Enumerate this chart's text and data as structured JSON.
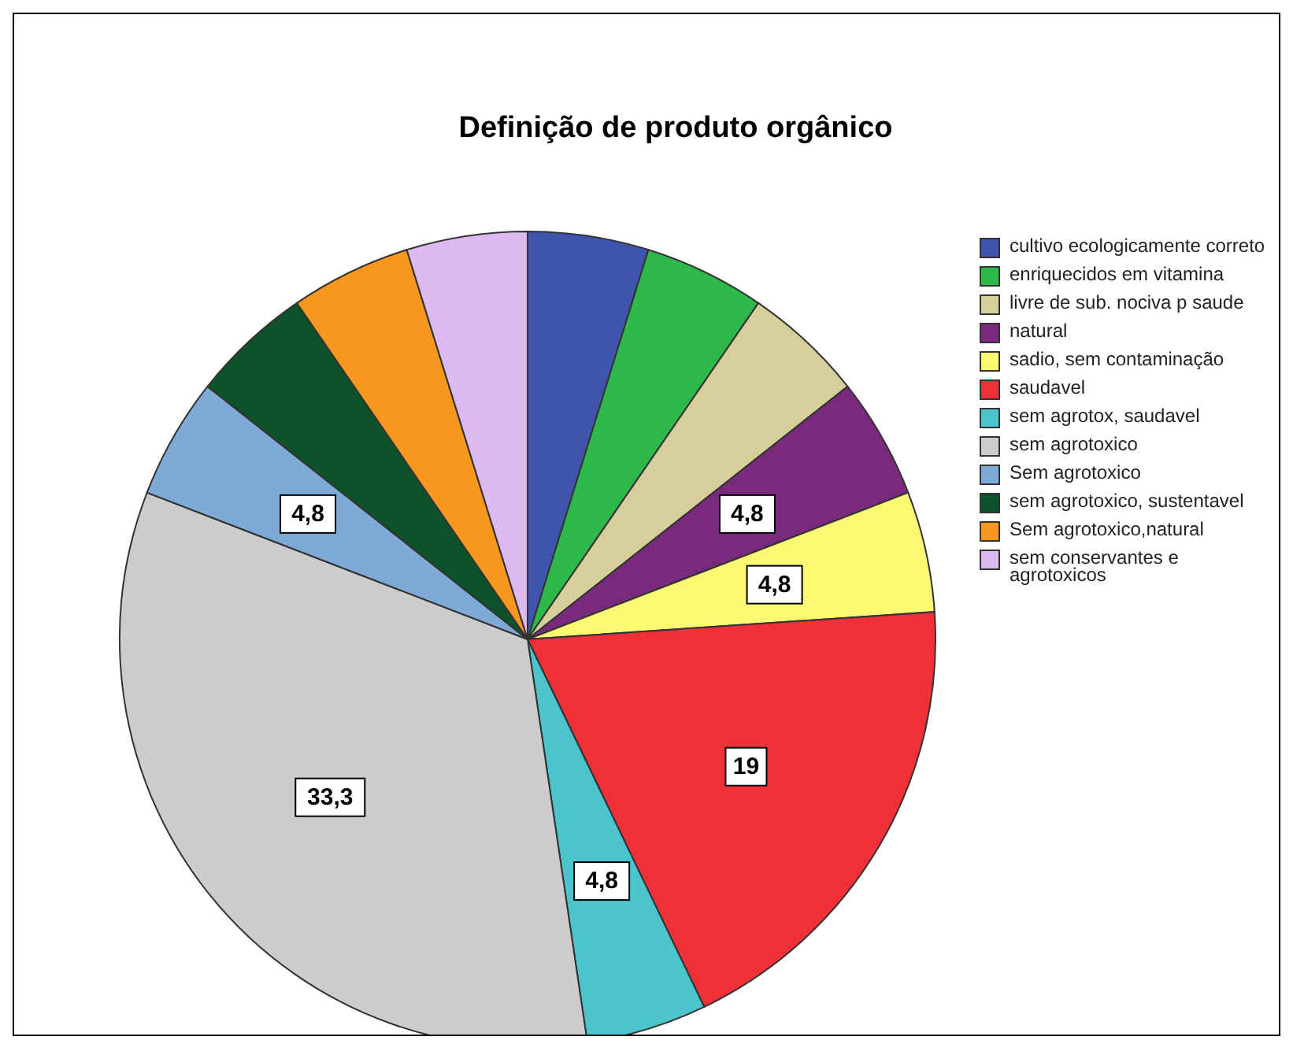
{
  "chart_data": {
    "type": "pie",
    "title": "Definição de produto orgânico",
    "categories": [
      "cultivo ecologicamente correto",
      "enriquecidos em vitamina",
      "livre de sub. nociva p saude",
      "natural",
      "sadio, sem contaminação",
      "saudavel",
      "sem agrotox, saudavel",
      "sem agrotoxico",
      "Sem agrotoxico",
      "sem agrotoxico, sustentavel",
      "Sem agrotoxico,natural",
      "sem conservantes e agrotoxicos"
    ],
    "values": [
      4.8,
      4.8,
      4.8,
      4.8,
      4.8,
      19,
      4.8,
      33.3,
      4.8,
      4.8,
      4.8,
      4.8
    ],
    "value_labels": [
      null,
      null,
      null,
      "4,8",
      "4,8",
      "19",
      "4,8",
      "33,3",
      "4,8",
      null,
      null,
      null
    ],
    "colors": [
      "#3d55ad",
      "#2fb84a",
      "#d6cf9c",
      "#7a2a7c",
      "#fbf873",
      "#ef3038",
      "#4bc4cb",
      "#cccccc",
      "#7eaad8",
      "#0d5228",
      "#f7971e",
      "#dcb9f1"
    ],
    "legend": "right"
  }
}
